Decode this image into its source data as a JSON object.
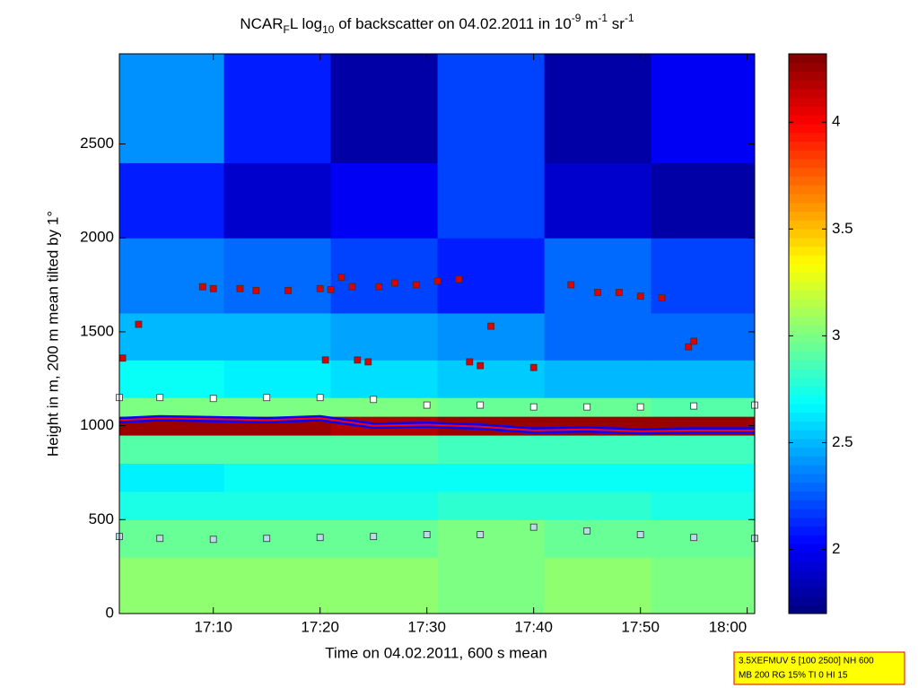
{
  "chart_data": {
    "type": "heatmap",
    "title_parts": [
      {
        "text": "NCAR"
      },
      {
        "text": "F",
        "shift": "sub"
      },
      {
        "text": "L log"
      },
      {
        "text": "10",
        "shift": "sub"
      },
      {
        "text": " of backscatter on 04.02.2011 in 10"
      },
      {
        "text": "-9",
        "shift": "super"
      },
      {
        "text": " m"
      },
      {
        "text": "-1",
        "shift": "super"
      },
      {
        "text": " sr"
      },
      {
        "text": "-1",
        "shift": "super"
      }
    ],
    "x_label": "Time on 04.02.2011, 600 s mean",
    "y_label": "Height in m, 200 m mean tilted by 1°",
    "xlim": [
      1.2,
      60.7
    ],
    "xticks": [
      {
        "value": 10,
        "label": "17:10"
      },
      {
        "value": 20,
        "label": "17:20"
      },
      {
        "value": 30,
        "label": "17:30"
      },
      {
        "value": 40,
        "label": "17:40"
      },
      {
        "value": 50,
        "label": "17:50"
      },
      {
        "value": 60,
        "label": "18:00"
      }
    ],
    "ylim": [
      0,
      2980
    ],
    "yticks": [
      0,
      500,
      1000,
      1500,
      2000,
      2500
    ],
    "clim": [
      1.7,
      4.32
    ],
    "cticks": [
      2,
      2.5,
      3,
      3.5,
      4
    ],
    "colormap": "jet",
    "x_edges": [
      1.2,
      11,
      21,
      31,
      41,
      51,
      60.7
    ],
    "y_edges": [
      0,
      300,
      500,
      650,
      800,
      950,
      1050,
      1150,
      1350,
      1600,
      2000,
      2400,
      2980
    ],
    "z": [
      [
        3.05,
        3.05,
        3.05,
        3.0,
        3.05,
        3.0
      ],
      [
        2.95,
        2.95,
        2.95,
        3.0,
        2.95,
        2.95
      ],
      [
        2.75,
        2.75,
        2.75,
        2.8,
        2.8,
        2.75
      ],
      [
        2.65,
        2.7,
        2.7,
        2.7,
        2.7,
        2.7
      ],
      [
        2.9,
        2.9,
        2.9,
        2.85,
        2.85,
        2.85
      ],
      [
        4.25,
        4.25,
        4.2,
        4.25,
        4.25,
        4.25
      ],
      [
        3.0,
        3.0,
        3.0,
        2.95,
        2.95,
        2.9
      ],
      [
        2.7,
        2.65,
        2.6,
        2.55,
        2.5,
        2.5
      ],
      [
        2.5,
        2.5,
        2.45,
        2.4,
        2.3,
        2.3
      ],
      [
        2.35,
        2.3,
        2.2,
        2.1,
        2.3,
        2.2
      ],
      [
        2.1,
        1.9,
        2.0,
        2.2,
        1.9,
        1.8
      ],
      [
        2.4,
        2.1,
        1.8,
        2.2,
        1.8,
        2.0
      ]
    ],
    "series": [
      {
        "style": "line",
        "color": "#ff0000",
        "edge": "#0000ff",
        "x": [
          1.2,
          5,
          10,
          15,
          20,
          25,
          30,
          35,
          40,
          45,
          50,
          55,
          60.7
        ],
        "values": [
          1030,
          1040,
          1035,
          1030,
          1040,
          1000,
          1005,
          995,
          975,
          980,
          970,
          975,
          975
        ]
      },
      {
        "style": "square",
        "color": "#ffffff",
        "x": [
          1.2,
          5,
          10,
          15,
          20,
          25,
          30,
          35,
          40,
          45,
          50,
          55,
          60.7
        ],
        "values": [
          1150,
          1150,
          1145,
          1150,
          1150,
          1140,
          1110,
          1110,
          1100,
          1100,
          1100,
          1105,
          1110
        ]
      },
      {
        "style": "square",
        "color": "#b8dce8",
        "x": [
          1.2,
          5,
          10,
          15,
          20,
          25,
          30,
          35,
          40,
          45,
          50,
          55,
          60.7
        ],
        "values": [
          410,
          400,
          395,
          400,
          405,
          410,
          420,
          420,
          460,
          440,
          420,
          405,
          400
        ]
      },
      {
        "style": "square",
        "color": "#e00000",
        "x": [
          1.5,
          3,
          9,
          10,
          12.5,
          14,
          17,
          20,
          20.5,
          21,
          22,
          23,
          23.5,
          24.5,
          25.5,
          27,
          29,
          31,
          33,
          34,
          35,
          36,
          40,
          43.5,
          46,
          48,
          50,
          52,
          54.5,
          55
        ],
        "values": [
          1360,
          1540,
          1740,
          1730,
          1730,
          1720,
          1720,
          1730,
          1350,
          1725,
          1790,
          1740,
          1350,
          1340,
          1740,
          1760,
          1750,
          1770,
          1780,
          1340,
          1320,
          1530,
          1310,
          1750,
          1710,
          1710,
          1690,
          1680,
          1420,
          1450
        ]
      }
    ],
    "info_box": [
      "3.5XEFMUV 5 [100 2500] NH 600",
      "MB 200 RG 15% TI 0 HI 15"
    ]
  }
}
